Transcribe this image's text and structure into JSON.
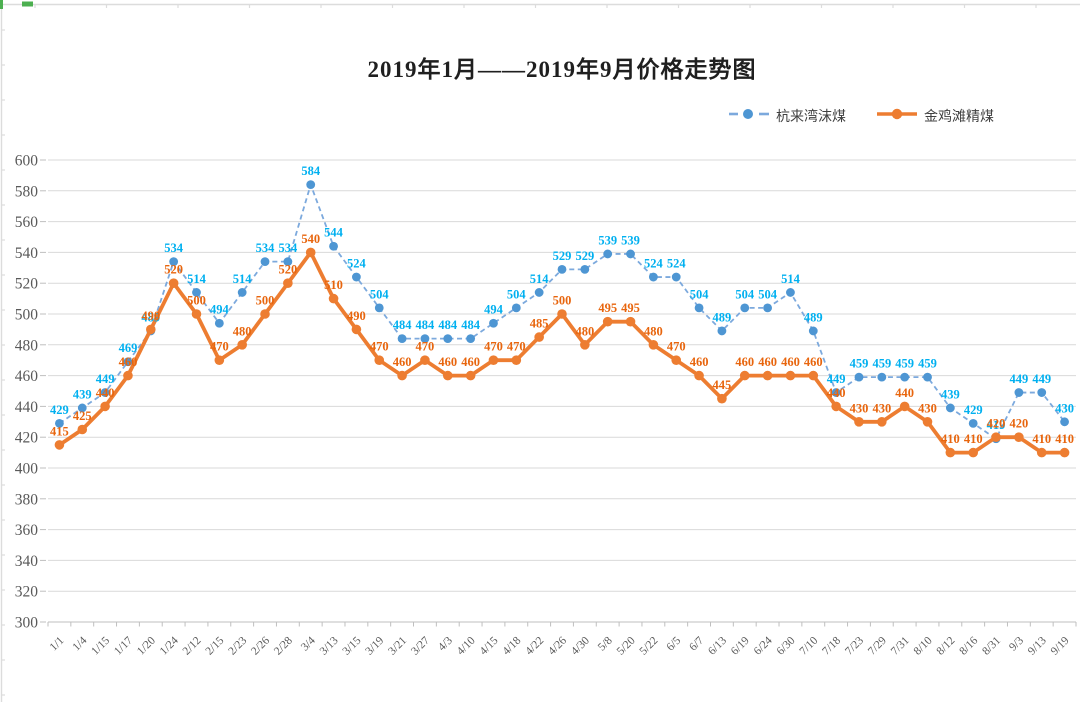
{
  "chart_data": {
    "type": "line",
    "title": "2019年1月——2019年9月价格走势图",
    "categories": [
      "1/1",
      "1/4",
      "1/15",
      "1/17",
      "1/20",
      "1/24",
      "2/12",
      "2/15",
      "2/23",
      "2/26",
      "2/28",
      "3/4",
      "3/13",
      "3/15",
      "3/19",
      "3/21",
      "3/27",
      "4/3",
      "4/10",
      "4/15",
      "4/18",
      "4/22",
      "4/26",
      "4/30",
      "5/8",
      "5/20",
      "5/22",
      "6/5",
      "6/7",
      "6/13",
      "6/19",
      "6/24",
      "6/30",
      "7/10",
      "7/18",
      "7/23",
      "7/29",
      "7/31",
      "8/10",
      "8/12",
      "8/16",
      "8/31",
      "9/3",
      "9/13",
      "9/19"
    ],
    "series": [
      {
        "name": "杭来湾沫煤",
        "line_style": "dashed",
        "line_color": "#7ca9dd",
        "marker_color": "#4e96d3",
        "label_color": "#00b0f0",
        "values": [
          429,
          439,
          449,
          469,
          489,
          534,
          514,
          494,
          514,
          534,
          534,
          584,
          544,
          524,
          504,
          484,
          484,
          484,
          484,
          494,
          504,
          514,
          529,
          529,
          539,
          539,
          524,
          524,
          504,
          489,
          504,
          504,
          514,
          489,
          449,
          459,
          459,
          459,
          459,
          439,
          429,
          419,
          449,
          449,
          430
        ]
      },
      {
        "name": "金鸡滩精煤",
        "line_style": "solid",
        "line_color": "#ed7d31",
        "marker_color": "#ed7d31",
        "label_color": "#e8650d",
        "values": [
          415,
          425,
          440,
          460,
          490,
          520,
          500,
          470,
          480,
          500,
          520,
          540,
          510,
          490,
          470,
          460,
          470,
          460,
          460,
          470,
          470,
          485,
          500,
          480,
          495,
          495,
          480,
          470,
          460,
          445,
          460,
          460,
          460,
          460,
          440,
          430,
          430,
          440,
          430,
          410,
          410,
          420,
          420,
          410,
          410
        ]
      }
    ],
    "ylim": [
      300,
      600
    ],
    "ytick_step": 20,
    "grid": true,
    "data_labels": true,
    "legend_position": "top-right",
    "xlabel": "",
    "ylabel": ""
  },
  "style": {
    "grid_color": "#d9d9d9",
    "axis_color": "#bfbfbf",
    "tick_label_color": "#595959",
    "ruler_color": "#dcdcdc",
    "ruler_green": "#4caf50"
  }
}
